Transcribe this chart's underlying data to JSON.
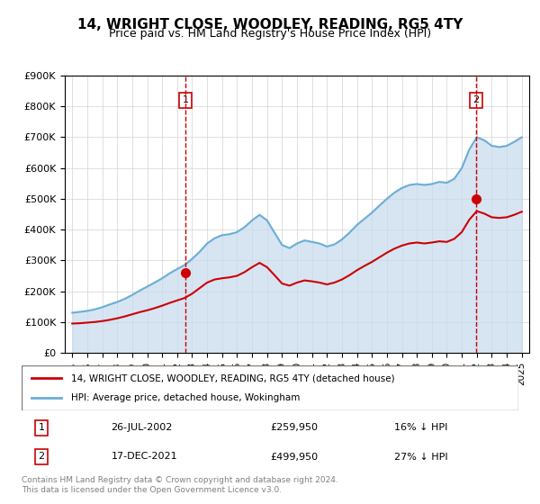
{
  "title": "14, WRIGHT CLOSE, WOODLEY, READING, RG5 4TY",
  "subtitle": "Price paid vs. HM Land Registry's House Price Index (HPI)",
  "legend_line1": "14, WRIGHT CLOSE, WOODLEY, READING, RG5 4TY (detached house)",
  "legend_line2": "HPI: Average price, detached house, Wokingham",
  "footnote": "Contains HM Land Registry data © Crown copyright and database right 2024.\nThis data is licensed under the Open Government Licence v3.0.",
  "sale1_label": "1",
  "sale1_date": "26-JUL-2002",
  "sale1_price": "£259,950",
  "sale1_pct": "16% ↓ HPI",
  "sale2_label": "2",
  "sale2_date": "17-DEC-2021",
  "sale2_price": "£499,950",
  "sale2_pct": "27% ↓ HPI",
  "sale1_x": 2002.57,
  "sale1_y": 259950,
  "sale2_x": 2021.96,
  "sale2_y": 499950,
  "hpi_color": "#6baed6",
  "hpi_fill_color": "#c6dbef",
  "price_color": "#cc0000",
  "sale_marker_color": "#cc0000",
  "vline_color": "#cc0000",
  "ylim": [
    0,
    900000
  ],
  "yticks": [
    0,
    100000,
    200000,
    300000,
    400000,
    500000,
    600000,
    700000,
    800000,
    900000
  ],
  "hpi_data_x": [
    1995,
    1995.5,
    1996,
    1996.5,
    1997,
    1997.5,
    1998,
    1998.5,
    1999,
    1999.5,
    2000,
    2000.5,
    2001,
    2001.5,
    2002,
    2002.5,
    2003,
    2003.5,
    2004,
    2004.5,
    2005,
    2005.5,
    2006,
    2006.5,
    2007,
    2007.5,
    2008,
    2008.5,
    2009,
    2009.5,
    2010,
    2010.5,
    2011,
    2011.5,
    2012,
    2012.5,
    2013,
    2013.5,
    2014,
    2014.5,
    2015,
    2015.5,
    2016,
    2016.5,
    2017,
    2017.5,
    2018,
    2018.5,
    2019,
    2019.5,
    2020,
    2020.5,
    2021,
    2021.5,
    2022,
    2022.5,
    2023,
    2023.5,
    2024,
    2024.5,
    2025
  ],
  "hpi_data_y": [
    130000,
    133000,
    136000,
    141000,
    148000,
    157000,
    165000,
    175000,
    188000,
    202000,
    215000,
    228000,
    242000,
    258000,
    272000,
    285000,
    305000,
    328000,
    355000,
    372000,
    382000,
    385000,
    392000,
    408000,
    430000,
    448000,
    430000,
    390000,
    350000,
    340000,
    355000,
    365000,
    360000,
    355000,
    345000,
    352000,
    368000,
    390000,
    415000,
    435000,
    455000,
    478000,
    500000,
    520000,
    535000,
    545000,
    548000,
    545000,
    548000,
    555000,
    552000,
    565000,
    600000,
    660000,
    700000,
    690000,
    672000,
    668000,
    672000,
    685000,
    700000
  ],
  "price_data_x": [
    1995,
    1995.5,
    1996,
    1996.5,
    1997,
    1997.5,
    1998,
    1998.5,
    1999,
    1999.5,
    2000,
    2000.5,
    2001,
    2001.5,
    2002,
    2002.5,
    2003,
    2003.5,
    2004,
    2004.5,
    2005,
    2005.5,
    2006,
    2006.5,
    2007,
    2007.5,
    2008,
    2008.5,
    2009,
    2009.5,
    2010,
    2010.5,
    2011,
    2011.5,
    2012,
    2012.5,
    2013,
    2013.5,
    2014,
    2014.5,
    2015,
    2015.5,
    2016,
    2016.5,
    2017,
    2017.5,
    2018,
    2018.5,
    2019,
    2019.5,
    2020,
    2020.5,
    2021,
    2021.5,
    2022,
    2022.5,
    2023,
    2023.5,
    2024,
    2024.5,
    2025
  ],
  "price_data_y": [
    95000,
    96000,
    98000,
    100000,
    103000,
    107000,
    112000,
    118000,
    125000,
    132000,
    138000,
    145000,
    153000,
    162000,
    170000,
    178000,
    192000,
    210000,
    228000,
    238000,
    242000,
    245000,
    250000,
    262000,
    278000,
    292000,
    278000,
    252000,
    225000,
    218000,
    228000,
    235000,
    232000,
    228000,
    222000,
    228000,
    238000,
    252000,
    268000,
    282000,
    295000,
    310000,
    325000,
    338000,
    348000,
    355000,
    358000,
    355000,
    358000,
    362000,
    360000,
    370000,
    392000,
    432000,
    460000,
    452000,
    440000,
    438000,
    440000,
    448000,
    458000
  ],
  "xlim": [
    1994.5,
    2025.5
  ],
  "xticks": [
    1995,
    1996,
    1997,
    1998,
    1999,
    2000,
    2001,
    2002,
    2003,
    2004,
    2005,
    2006,
    2007,
    2008,
    2009,
    2010,
    2011,
    2012,
    2013,
    2014,
    2015,
    2016,
    2017,
    2018,
    2019,
    2020,
    2021,
    2022,
    2023,
    2024,
    2025
  ]
}
